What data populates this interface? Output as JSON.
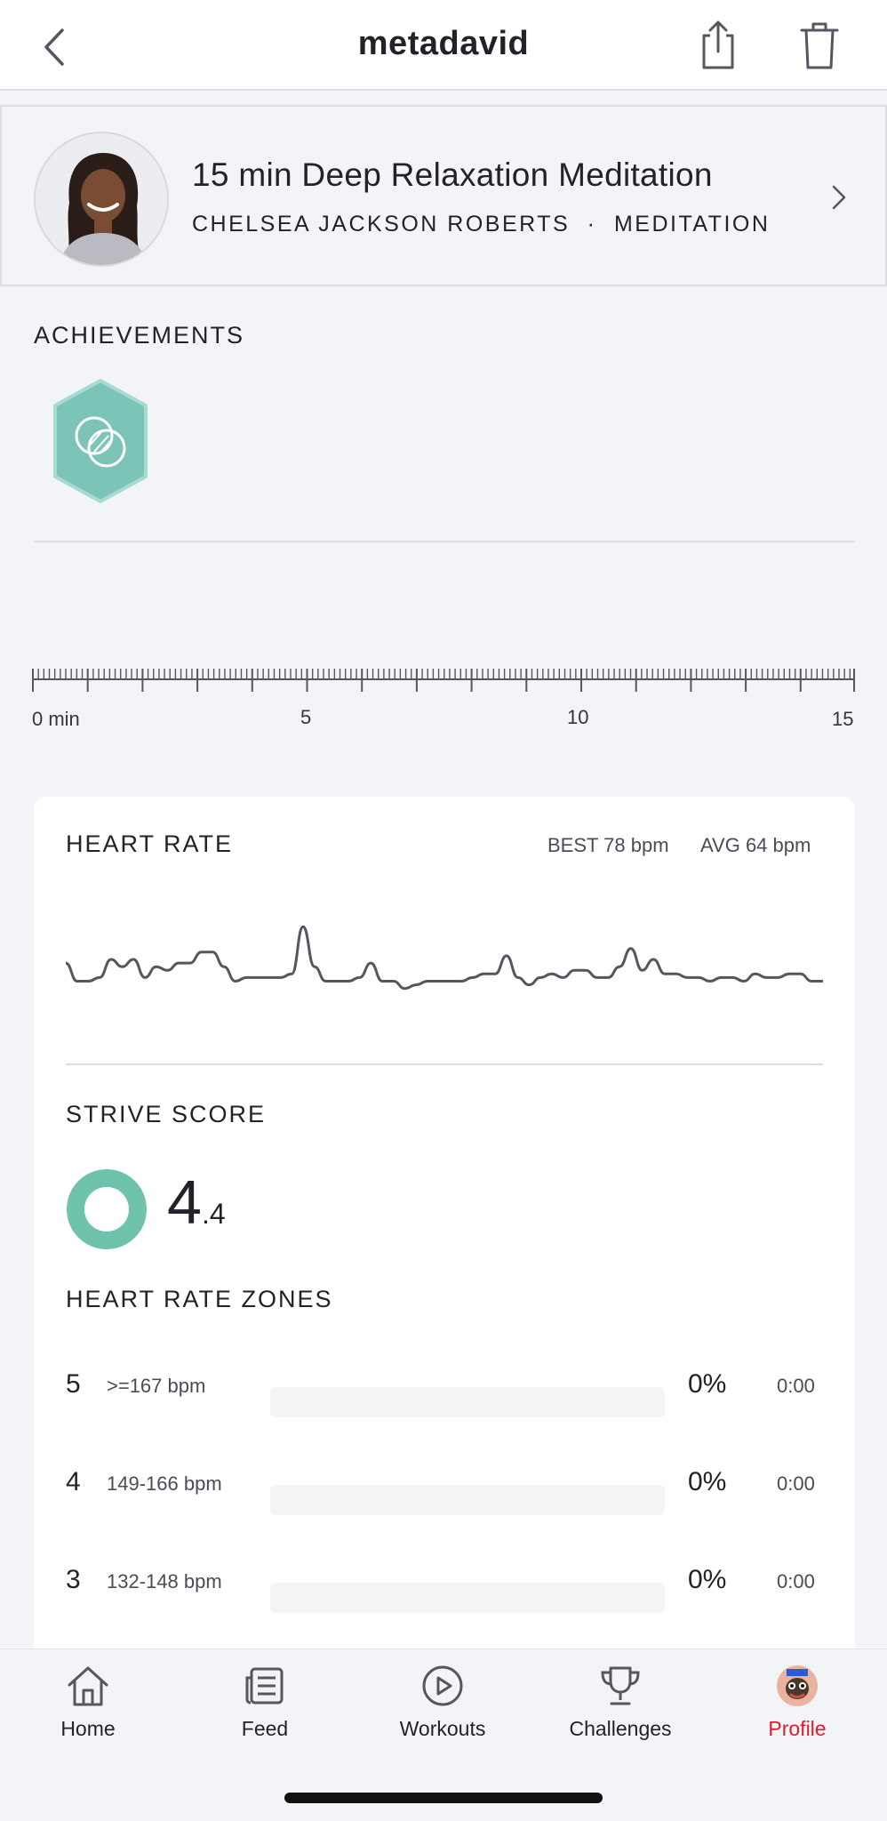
{
  "header": {
    "title": "metadavid",
    "icons": [
      "back-chevron-icon",
      "share-icon",
      "trash-icon"
    ]
  },
  "class_card": {
    "title": "15 min Deep Relaxation Meditation",
    "instructor": "CHELSEA JACKSON ROBERTS",
    "separator": "·",
    "category": "MEDITATION",
    "icons": [
      "instructor-avatar",
      "chevron-right-icon"
    ]
  },
  "achievements": {
    "label": "ACHIEVEMENTS",
    "badges": [
      {
        "icon": "meditation-badge-icon",
        "color": "#7cc4b8"
      }
    ]
  },
  "timeline": {
    "labels": [
      "0 min",
      "5",
      "10",
      "15"
    ]
  },
  "heart_rate": {
    "label": "HEART RATE",
    "best": "BEST 78 bpm",
    "avg": "AVG 64 bpm",
    "line_color": "#55565f"
  },
  "chart_data": {
    "type": "line",
    "title": "HEART RATE",
    "xlabel": "",
    "ylabel": "",
    "x_range_min": [
      0,
      15
    ],
    "y_range_bpm": [
      56,
      80
    ],
    "grid": false,
    "series": [
      {
        "values": [
          67,
          62,
          62,
          63,
          68,
          66,
          68,
          63,
          66,
          65,
          67,
          67,
          70,
          70,
          66,
          62,
          63,
          63,
          63,
          63,
          64,
          77,
          66,
          62,
          62,
          62,
          63,
          67,
          62,
          62,
          60,
          61,
          62,
          62,
          62,
          62,
          63,
          64,
          64,
          69,
          63,
          61,
          63,
          64,
          63,
          65,
          65,
          63,
          63,
          66,
          71,
          65,
          68,
          64,
          64,
          63,
          63,
          62,
          63,
          63,
          62,
          64,
          63,
          63,
          64,
          64,
          62,
          62
        ]
      }
    ]
  },
  "strive": {
    "label": "STRIVE SCORE",
    "whole": "4",
    "decimal": ".4",
    "ring_color": "#6fc3ad"
  },
  "zones": {
    "label": "HEART RATE ZONES",
    "bar_color": "#6fc3ad",
    "rows": [
      {
        "zone": "5",
        "range": ">=167 bpm",
        "fraction": 0,
        "pct": "0%",
        "time": "0:00"
      },
      {
        "zone": "4",
        "range": "149-166 bpm",
        "fraction": 0,
        "pct": "0%",
        "time": "0:00"
      },
      {
        "zone": "3",
        "range": "132-148 bpm",
        "fraction": 0,
        "pct": "0%",
        "time": "0:00"
      }
    ]
  },
  "tabbar": {
    "active_color": "#df1c2f",
    "tabs": [
      {
        "label": "Home",
        "icon": "home-icon"
      },
      {
        "label": "Feed",
        "icon": "feed-icon"
      },
      {
        "label": "Workouts",
        "icon": "play-circle-icon"
      },
      {
        "label": "Challenges",
        "icon": "trophy-icon"
      },
      {
        "label": "Profile",
        "icon": "profile-avatar-icon",
        "active": true
      }
    ]
  }
}
